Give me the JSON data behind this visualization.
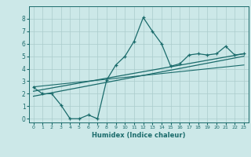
{
  "xlabel": "Humidex (Indice chaleur)",
  "bg_color": "#cce8e8",
  "line_color": "#1a6b6b",
  "grid_color": "#aacccc",
  "xlim": [
    -0.5,
    23.5
  ],
  "ylim": [
    -0.3,
    9.0
  ],
  "xticks": [
    0,
    1,
    2,
    3,
    4,
    5,
    6,
    7,
    8,
    9,
    10,
    11,
    12,
    13,
    14,
    15,
    16,
    17,
    18,
    19,
    20,
    21,
    22,
    23
  ],
  "yticks": [
    0,
    1,
    2,
    3,
    4,
    5,
    6,
    7,
    8
  ],
  "curve_x": [
    0,
    1,
    2,
    3,
    4,
    5,
    6,
    7,
    8,
    9,
    10,
    11,
    12,
    13,
    14,
    15,
    16,
    17,
    18,
    19,
    20,
    21,
    22,
    23
  ],
  "curve_y": [
    2.5,
    2.0,
    2.0,
    1.1,
    0.0,
    0.0,
    0.3,
    0.0,
    3.1,
    4.3,
    5.0,
    6.2,
    8.1,
    7.0,
    6.0,
    4.2,
    4.4,
    5.1,
    5.2,
    5.1,
    5.2,
    5.8,
    5.1,
    5.2
  ],
  "trend1_x": [
    0,
    23
  ],
  "trend1_y": [
    2.2,
    5.2
  ],
  "trend2_x": [
    0,
    23
  ],
  "trend2_y": [
    1.8,
    5.0
  ],
  "trend3_x": [
    0,
    23
  ],
  "trend3_y": [
    2.55,
    4.3
  ]
}
